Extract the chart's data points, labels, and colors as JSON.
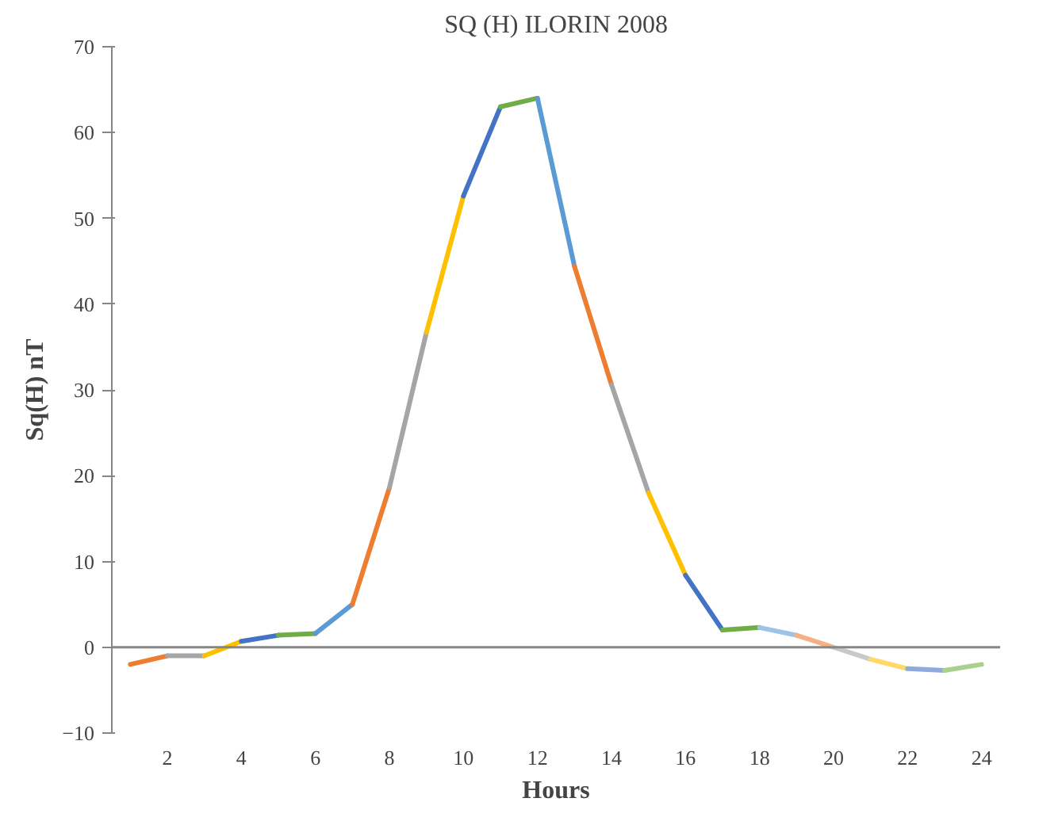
{
  "chart_data": {
    "type": "line",
    "title": "SQ (H) ILORIN 2008",
    "xlabel": "Hours",
    "ylabel": "Sq(H) nT",
    "series": [
      {
        "color": "#ed7d31",
        "x": [
          1,
          2
        ],
        "values": [
          -2,
          -1
        ]
      },
      {
        "color": "#a5a5a5",
        "x": [
          2,
          3
        ],
        "values": [
          -1,
          -1
        ]
      },
      {
        "color": "#ffc000",
        "x": [
          3,
          4
        ],
        "values": [
          -1,
          0.7
        ]
      },
      {
        "color": "#4472c4",
        "x": [
          4,
          5
        ],
        "values": [
          0.7,
          1.4
        ]
      },
      {
        "color": "#70ad47",
        "x": [
          5,
          6
        ],
        "values": [
          1.4,
          1.6
        ]
      },
      {
        "color": "#5b9bd5",
        "x": [
          6,
          7
        ],
        "values": [
          1.6,
          5
        ]
      },
      {
        "color": "#ed7d31",
        "x": [
          7,
          8
        ],
        "values": [
          5,
          18.6
        ]
      },
      {
        "color": "#a5a5a5",
        "x": [
          8,
          9
        ],
        "values": [
          18.6,
          36.7
        ]
      },
      {
        "color": "#ffc000",
        "x": [
          9,
          10
        ],
        "values": [
          36.7,
          52.6
        ]
      },
      {
        "color": "#4472c4",
        "x": [
          10,
          11
        ],
        "values": [
          52.6,
          63
        ]
      },
      {
        "color": "#70ad47",
        "x": [
          11,
          12
        ],
        "values": [
          63,
          64
        ]
      },
      {
        "color": "#5b9bd5",
        "x": [
          12,
          13
        ],
        "values": [
          64,
          44.4
        ]
      },
      {
        "color": "#ed7d31",
        "x": [
          13,
          14
        ],
        "values": [
          44.4,
          30.6
        ]
      },
      {
        "color": "#a5a5a5",
        "x": [
          14,
          15
        ],
        "values": [
          30.6,
          18
        ]
      },
      {
        "color": "#ffc000",
        "x": [
          15,
          16
        ],
        "values": [
          18,
          8.4
        ]
      },
      {
        "color": "#4472c4",
        "x": [
          16,
          17
        ],
        "values": [
          8.4,
          2
        ]
      },
      {
        "color": "#70ad47",
        "x": [
          17,
          18
        ],
        "values": [
          2,
          2.3
        ]
      },
      {
        "color": "#9dc3e6",
        "x": [
          18,
          19
        ],
        "values": [
          2.3,
          1.4
        ]
      },
      {
        "color": "#f4b183",
        "x": [
          19,
          20
        ],
        "values": [
          1.4,
          0
        ]
      },
      {
        "color": "#c9c9c9",
        "x": [
          20,
          21
        ],
        "values": [
          0,
          -1.4
        ]
      },
      {
        "color": "#ffd966",
        "x": [
          21,
          22
        ],
        "values": [
          -1.4,
          -2.5
        ]
      },
      {
        "color": "#8faadc",
        "x": [
          22,
          23
        ],
        "values": [
          -2.5,
          -2.7
        ]
      },
      {
        "color": "#a9d18e",
        "x": [
          23,
          24
        ],
        "values": [
          -2.7,
          -2
        ]
      }
    ],
    "xlim": [
      0.5,
      24.5
    ],
    "xticks": [
      2,
      4,
      6,
      8,
      10,
      12,
      14,
      16,
      18,
      20,
      22,
      24
    ],
    "ylim": [
      -10,
      70
    ],
    "yticks": [
      -10,
      0,
      10,
      20,
      30,
      40,
      50,
      60,
      70
    ],
    "ref_lines": [
      {
        "axis": "y",
        "value": 0,
        "color": "#868686"
      }
    ],
    "grid": false,
    "marker": "none",
    "line_style": "solid"
  }
}
